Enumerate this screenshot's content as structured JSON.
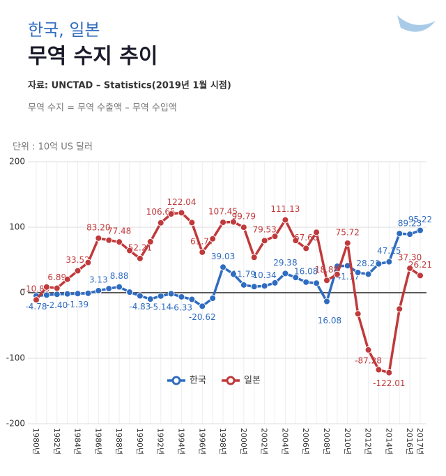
{
  "chart_data": {
    "type": "line",
    "supertitle": "한국, 일본",
    "title": "무역 수지 추이",
    "source": "자료: UNCTAD – Statistics(2019년 1월 시점)",
    "subtitle": "무역 수지 = 무역 수출액 – 무역 수입액",
    "unit": "단위 : 10억 US 달러",
    "categories": [
      "1980년",
      null,
      "1982년",
      null,
      "1984년",
      null,
      "1986년",
      null,
      "1988년",
      null,
      "1990년",
      null,
      "1992년",
      null,
      "1994년",
      null,
      "1996년",
      null,
      "1998년",
      null,
      "2000년",
      null,
      "2002년",
      null,
      "2004년",
      null,
      "2006년",
      null,
      "2008년",
      null,
      "2010년",
      null,
      "2012년",
      null,
      "2014년",
      null,
      "2016년",
      "2017년"
    ],
    "series": [
      {
        "name": "한국",
        "color": "#2f6cc0",
        "values": [
          -4.78,
          -3.6,
          -2.4,
          -1.8,
          -1.39,
          -0.9,
          3.13,
          6.3,
          8.88,
          0.9,
          -4.83,
          -9.7,
          -5.14,
          -1.6,
          -6.33,
          -10.1,
          -20.62,
          -8.5,
          39.03,
          28.4,
          11.79,
          9.3,
          10.34,
          15,
          29.38,
          23.2,
          16.08,
          14.6,
          -13.3,
          40.4,
          41.17,
          30.8,
          28.28,
          44,
          47.15,
          90.3,
          89.23,
          95.22
        ],
        "value_labels": [
          "-4.78",
          null,
          "-2.40",
          null,
          "-1.39",
          null,
          "3.13",
          null,
          "8.88",
          null,
          "-4.83",
          null,
          "-5.14",
          null,
          "-6.33",
          null,
          "-20.62",
          null,
          "39.03",
          null,
          "11.79",
          null,
          "10.34",
          null,
          "29.38",
          null,
          "16.08",
          null,
          null,
          null,
          "41.17",
          null,
          "28.28",
          null,
          "47.15",
          null,
          "89.23",
          "95.22"
        ]
      },
      {
        "name": "일본",
        "color": "#c0393b",
        "values": [
          -10.86,
          8.7,
          6.89,
          20.5,
          33.52,
          46.1,
          83.2,
          80.2,
          77.48,
          64.3,
          52.21,
          77.8,
          106.65,
          120.2,
          122.04,
          107,
          61.77,
          82.2,
          107.45,
          108,
          99.79,
          54,
          79.53,
          86,
          111.13,
          79.6,
          67.66,
          92.3,
          18.88,
          28,
          75.72,
          -32.2,
          -87.28,
          -117.6,
          -122.01,
          -24.8,
          37.3,
          26.21
        ],
        "value_labels": [
          "-10.86",
          null,
          "6.89",
          null,
          "33.52",
          null,
          "83.20",
          null,
          "77.48",
          null,
          "52.21",
          null,
          "106.65",
          null,
          "122.04",
          null,
          "61.77",
          null,
          "107.45",
          null,
          "99.79",
          null,
          "79.53",
          null,
          "111.13",
          null,
          "67.66",
          null,
          "18.88",
          null,
          "75.72",
          null,
          "-87.28",
          null,
          "-122.01",
          null,
          "37.30",
          "26.21"
        ]
      }
    ],
    "annotations": [
      "16.08"
    ],
    "ylim": [
      -200,
      200
    ],
    "yticks": [
      -200,
      -100,
      0,
      100,
      200
    ],
    "grid": true,
    "legend": "center"
  }
}
